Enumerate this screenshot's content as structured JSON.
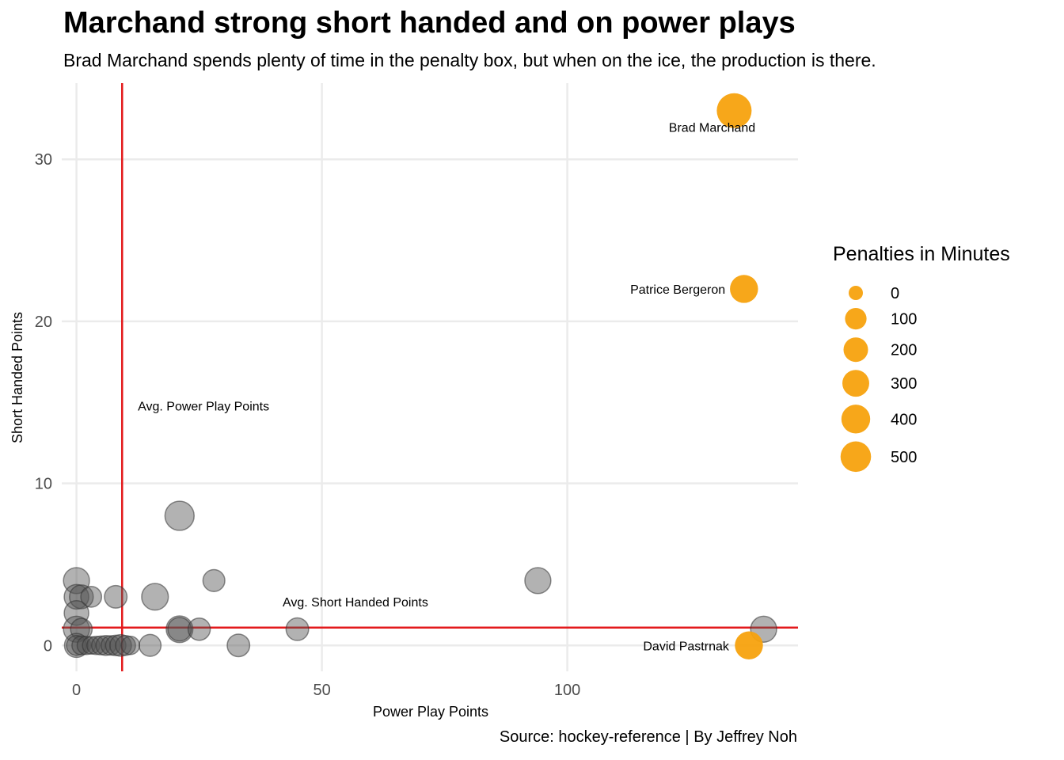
{
  "chart_data": {
    "type": "scatter",
    "title": "Marchand strong short handed and on power plays",
    "subtitle": "Brad Marchand spends plenty of time in the penalty box, but when on the ice, the production is there.",
    "caption": "Source: hockey-reference | By Jeffrey Noh",
    "xlabel": "Power Play Points",
    "ylabel": "Short Handed Points",
    "xlim": [
      -3,
      147
    ],
    "ylim": [
      -1.6,
      34.7
    ],
    "xticks": [
      0,
      50,
      100
    ],
    "yticks": [
      0,
      10,
      20,
      30
    ],
    "grid": true,
    "reference_lines": [
      {
        "axis": "x",
        "value": 9.3,
        "color": "#e31a1c",
        "label": "Avg. Power Play Points",
        "label_x": 12.5,
        "label_y": 14.8
      },
      {
        "axis": "y",
        "value": 1.1,
        "color": "#e31a1c",
        "label": "Avg. Short Handed Points",
        "label_x": 42,
        "label_y": 2.7
      }
    ],
    "highlight_color": "#f7a20e",
    "other_color": "#555555",
    "highlighted_points": [
      {
        "name": "Brad Marchand",
        "x": 134,
        "y": 33,
        "pim": 800,
        "label_dx": -4.5,
        "label_dy": -1.0
      },
      {
        "name": "Patrice Bergeron",
        "x": 136,
        "y": 22,
        "pim": 360,
        "label_dx": -13.5,
        "label_dy": 0
      },
      {
        "name": "David Pastrnak",
        "x": 137,
        "y": 0,
        "pim": 360,
        "label_dx": -12.8,
        "label_dy": 0
      }
    ],
    "other_points": [
      {
        "x": 21,
        "y": 8,
        "pim": 420
      },
      {
        "x": 94,
        "y": 4,
        "pim": 260
      },
      {
        "x": 140,
        "y": 1,
        "pim": 260
      },
      {
        "x": 28,
        "y": 4,
        "pim": 110
      },
      {
        "x": 16,
        "y": 3,
        "pim": 290
      },
      {
        "x": 8,
        "y": 3,
        "pim": 130
      },
      {
        "x": 0,
        "y": 4,
        "pim": 260
      },
      {
        "x": 0,
        "y": 3,
        "pim": 200
      },
      {
        "x": 1,
        "y": 3,
        "pim": 170
      },
      {
        "x": 3,
        "y": 3,
        "pim": 80
      },
      {
        "x": 0,
        "y": 2,
        "pim": 200
      },
      {
        "x": 0,
        "y": 1,
        "pim": 260
      },
      {
        "x": 1,
        "y": 1,
        "pim": 100
      },
      {
        "x": 21,
        "y": 1,
        "pim": 290
      },
      {
        "x": 21,
        "y": 1,
        "pim": 160
      },
      {
        "x": 25,
        "y": 1,
        "pim": 120
      },
      {
        "x": 45,
        "y": 1,
        "pim": 130
      },
      {
        "x": 33,
        "y": 0,
        "pim": 130
      },
      {
        "x": 15,
        "y": 0,
        "pim": 110
      },
      {
        "x": 0,
        "y": 0,
        "pim": 180
      },
      {
        "x": 0,
        "y": 0,
        "pim": 60
      },
      {
        "x": 1,
        "y": 0,
        "pim": 40
      },
      {
        "x": 2,
        "y": 0,
        "pim": 30
      },
      {
        "x": 3,
        "y": 0,
        "pim": 20
      },
      {
        "x": 4,
        "y": 0,
        "pim": 30
      },
      {
        "x": 5,
        "y": 0,
        "pim": 40
      },
      {
        "x": 6,
        "y": 0,
        "pim": 60
      },
      {
        "x": 7,
        "y": 0,
        "pim": 50
      },
      {
        "x": 8,
        "y": 0,
        "pim": 70
      },
      {
        "x": 9,
        "y": 0,
        "pim": 100
      },
      {
        "x": 10,
        "y": 0,
        "pim": 60
      },
      {
        "x": 11,
        "y": 0,
        "pim": 30
      }
    ],
    "legend": {
      "title": "Penalties in Minutes",
      "position": "right",
      "entries": [
        {
          "label": "0",
          "pim": 0
        },
        {
          "label": "100",
          "pim": 100
        },
        {
          "label": "200",
          "pim": 200
        },
        {
          "label": "300",
          "pim": 300
        },
        {
          "label": "400",
          "pim": 400
        },
        {
          "label": "500",
          "pim": 500
        }
      ]
    }
  }
}
